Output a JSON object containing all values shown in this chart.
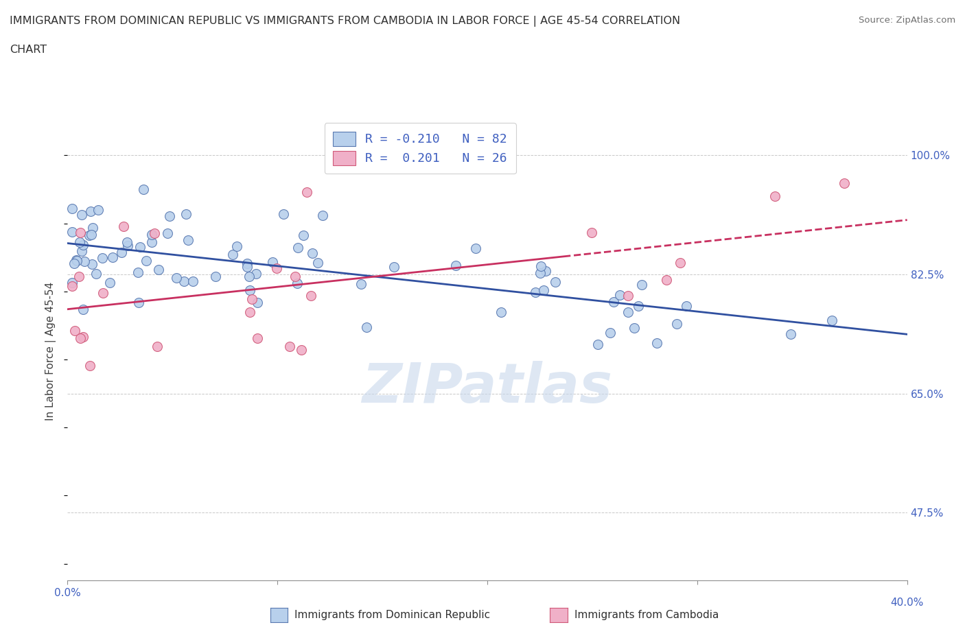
{
  "title_line1": "IMMIGRANTS FROM DOMINICAN REPUBLIC VS IMMIGRANTS FROM CAMBODIA IN LABOR FORCE | AGE 45-54 CORRELATION",
  "title_line2": "CHART",
  "source_text": "Source: ZipAtlas.com",
  "ylabel": "In Labor Force | Age 45-54",
  "watermark": "ZIPatlas",
  "xlim": [
    0.0,
    0.4
  ],
  "ylim": [
    0.375,
    1.05
  ],
  "ytick_labels_right": [
    "47.5%",
    "65.0%",
    "82.5%",
    "100.0%"
  ],
  "ytick_vals_right": [
    0.475,
    0.65,
    0.825,
    1.0
  ],
  "legend_label1": "Immigrants from Dominican Republic",
  "legend_label2": "Immigrants from Cambodia",
  "R1": "-0.210",
  "N1": "82",
  "R2": "0.201",
  "N2": "26",
  "blue_fill": "#b8d0ec",
  "blue_edge": "#5878b0",
  "pink_fill": "#f0b0c8",
  "pink_edge": "#d05878",
  "blue_line": "#3050a0",
  "pink_line": "#c83060",
  "grid_color": "#c8c8c8",
  "bg_color": "#ffffff",
  "title_color": "#303030",
  "axis_label_color": "#4060c0",
  "watermark_color": "#c8d8ec"
}
